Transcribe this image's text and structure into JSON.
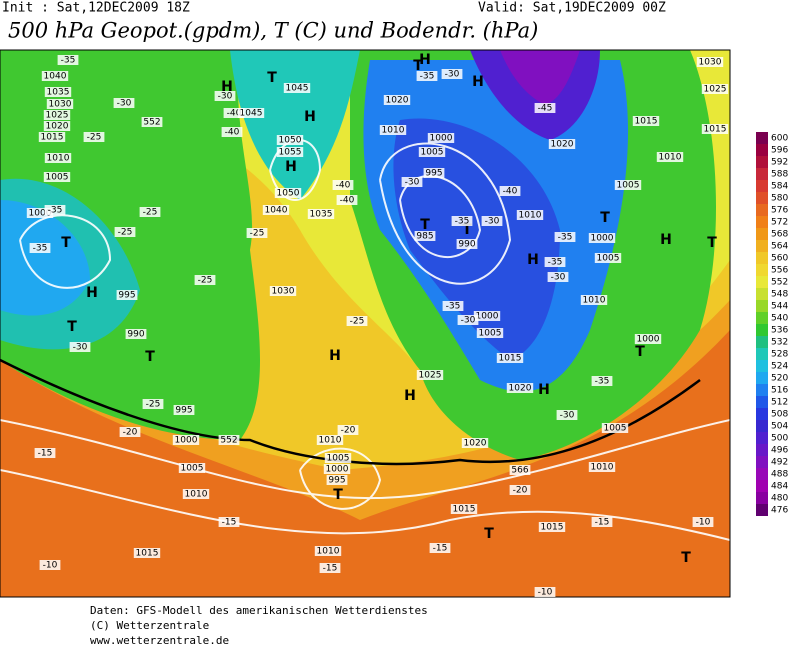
{
  "header": {
    "init": "Init : Sat,12DEC2009 18Z",
    "valid": "Valid: Sat,19DEC2009 00Z",
    "title": "500 hPa Geopot.(gpdm), T (C) und Bodendr. (hPa)"
  },
  "legend": {
    "values": [
      "600",
      "596",
      "592",
      "588",
      "584",
      "580",
      "576",
      "572",
      "568",
      "564",
      "560",
      "556",
      "552",
      "548",
      "544",
      "540",
      "536",
      "532",
      "528",
      "524",
      "520",
      "516",
      "512",
      "508",
      "504",
      "500",
      "496",
      "492",
      "488",
      "484",
      "480",
      "476"
    ],
    "colors": [
      "#7a0050",
      "#9a0040",
      "#b0103a",
      "#c8283a",
      "#d83a30",
      "#e05028",
      "#e86a20",
      "#f08018",
      "#f09818",
      "#f0b020",
      "#f0c828",
      "#f0d830",
      "#e8e838",
      "#c8e030",
      "#98d828",
      "#60d028",
      "#30c830",
      "#20c080",
      "#20c8b8",
      "#20c0e0",
      "#20a8f0",
      "#2080f0",
      "#2058e8",
      "#2838e0",
      "#3828d0",
      "#5020d0",
      "#6818c8",
      "#8010c0",
      "#9808b8",
      "#a000b0",
      "#8800a0",
      "#600070"
    ]
  },
  "map": {
    "labels": [
      "-35",
      "1040",
      "1035",
      "1030",
      "1025",
      "1020",
      "1015",
      "-25",
      "552",
      "1010",
      "1005",
      "1000",
      "-35",
      "T",
      "-35",
      "H",
      "995",
      "T",
      "990",
      "-30",
      "T",
      "-25",
      "995",
      "-20",
      "1000",
      "552",
      "-15",
      "1005",
      "1010",
      "-15",
      "1015",
      "-10",
      "-25",
      "-25",
      "-25",
      "-30",
      "-30",
      "-40",
      "-40",
      "H",
      "T",
      "1045",
      "1045",
      "H",
      "1050",
      "1055",
      "H",
      "1050",
      "1040",
      "1035",
      "-40",
      "-40",
      "-25",
      "1030",
      "-25",
      "H",
      "1025",
      "H",
      "1010",
      "-20",
      "1005",
      "1000",
      "995",
      "T",
      "1020",
      "1010",
      "-15",
      "1015",
      "-15",
      "-20",
      "1015",
      "-15",
      "T",
      "-10",
      "T",
      "-10",
      "1010",
      "1005",
      "-30",
      "-35",
      "1000",
      "T",
      "1010",
      "1005",
      "1000",
      "T",
      "H",
      "T",
      "1005",
      "1010",
      "1015",
      "1020",
      "1015",
      "1025",
      "1030",
      "-45",
      "-40",
      "1010",
      "-35",
      "-35",
      "-30",
      "H",
      "T",
      "T",
      "985",
      "990",
      "-35",
      "-30",
      "-30",
      "995",
      "1000",
      "1005",
      "1010",
      "1020",
      "H",
      "T",
      "-35",
      "-30",
      "H",
      "1000",
      "1005",
      "1015",
      "1020",
      "H",
      "-30",
      "-35",
      "566"
    ]
  },
  "footer": {
    "lines": [
      "Daten: GFS-Modell des amerikanischen Wetterdienstes",
      "(C) Wetterzentrale",
      "www.wetterzentrale.de"
    ]
  }
}
